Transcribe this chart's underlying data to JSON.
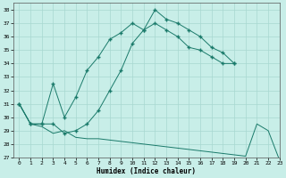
{
  "xlabel": "Humidex (Indice chaleur)",
  "xlim": [
    -0.5,
    23
  ],
  "ylim": [
    27,
    38.5
  ],
  "xticks": [
    0,
    1,
    2,
    3,
    4,
    5,
    6,
    7,
    8,
    9,
    10,
    11,
    12,
    13,
    14,
    15,
    16,
    17,
    18,
    19,
    20,
    21,
    22,
    23
  ],
  "yticks": [
    27,
    28,
    29,
    30,
    31,
    32,
    33,
    34,
    35,
    36,
    37,
    38
  ],
  "line_color": "#1a7a6a",
  "bg_color": "#c8eee8",
  "grid_color": "#a8d8d0",
  "line1_x": [
    0,
    1,
    2,
    3,
    4,
    5,
    6,
    7,
    8,
    9,
    10,
    11,
    12,
    13,
    14,
    15,
    16,
    17,
    18,
    19
  ],
  "line1_y": [
    31,
    29.5,
    29.5,
    32.5,
    30.0,
    31.5,
    33.5,
    34.5,
    35.8,
    36.3,
    37.0,
    36.5,
    38.0,
    37.3,
    37.0,
    36.5,
    36.0,
    35.2,
    34.8,
    34.0
  ],
  "line2_x": [
    0,
    1,
    2,
    3,
    4,
    5,
    6,
    7,
    8,
    9,
    10,
    11,
    12,
    13,
    14,
    15,
    16,
    17,
    18,
    19
  ],
  "line2_y": [
    31,
    29.5,
    29.5,
    29.5,
    28.8,
    29.0,
    29.5,
    30.5,
    32.0,
    33.5,
    35.5,
    36.5,
    37.0,
    36.5,
    36.0,
    35.2,
    35.0,
    34.5,
    34.0,
    34.0
  ],
  "line3_x": [
    0,
    1,
    2,
    3,
    4,
    5,
    6,
    7,
    8,
    9,
    10,
    11,
    12,
    13,
    14,
    15,
    16,
    17,
    18,
    19,
    20,
    21,
    22,
    23
  ],
  "line3_y": [
    31,
    29.5,
    29.3,
    28.8,
    29.0,
    28.5,
    28.4,
    28.4,
    28.3,
    28.2,
    28.1,
    28.0,
    27.9,
    27.8,
    27.7,
    27.6,
    27.5,
    27.4,
    27.3,
    27.2,
    27.1,
    29.5,
    29.0,
    26.8
  ]
}
